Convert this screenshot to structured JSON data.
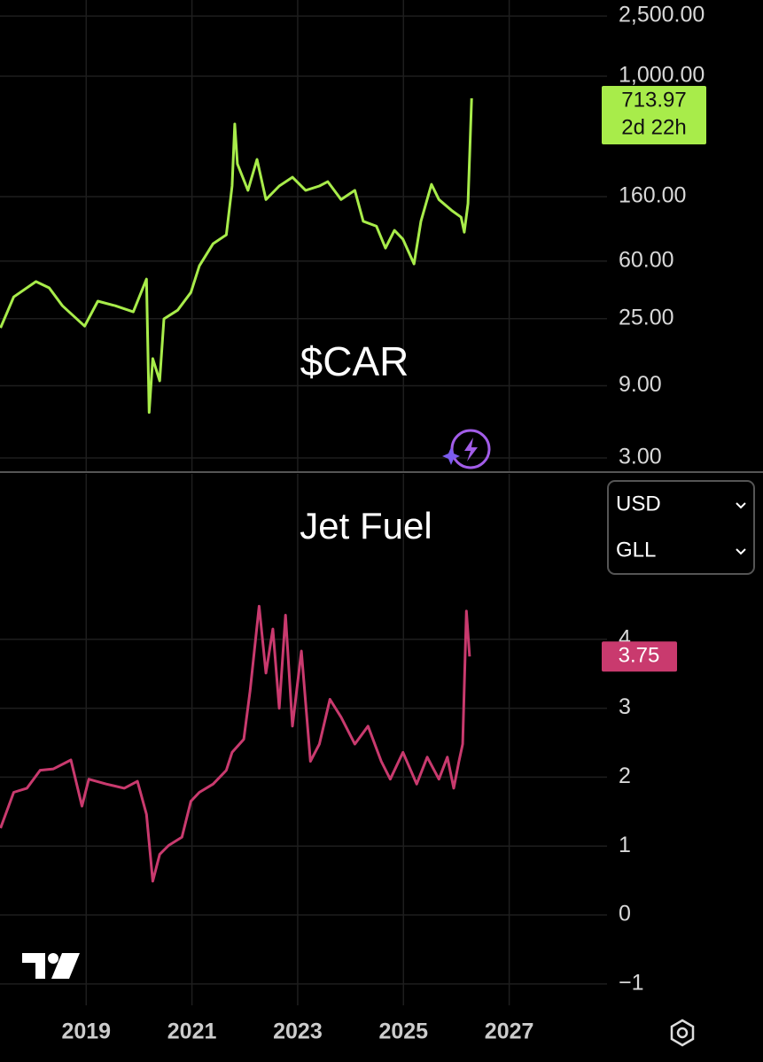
{
  "chart_data": [
    {
      "type": "line",
      "title": "$CAR",
      "log_scale": true,
      "color": "#a8ec4a",
      "xlim": [
        2017.37,
        2028.85
      ],
      "ylim": [
        2.45,
        3190
      ],
      "yticks": [
        {
          "value": 2500,
          "label": "2,500.00"
        },
        {
          "value": 1000,
          "label": "1,000.00"
        },
        {
          "value": 160,
          "label": "160.00"
        },
        {
          "value": 60,
          "label": "60.00"
        },
        {
          "value": 25,
          "label": "25.00"
        },
        {
          "value": 9,
          "label": "9.00"
        },
        {
          "value": 3,
          "label": "3.00"
        }
      ],
      "countdown": "2d 22h",
      "series": [
        {
          "name": "$CAR",
          "color": "#a8ec4a",
          "x": [
            2017.38,
            2017.63,
            2018.05,
            2018.3,
            2018.55,
            2018.97,
            2019.22,
            2019.55,
            2019.89,
            2020.14,
            2020.19,
            2020.26,
            2020.39,
            2020.47,
            2020.73,
            2020.98,
            2021.14,
            2021.4,
            2021.65,
            2021.76,
            2021.81,
            2021.86,
            2022.06,
            2022.23,
            2022.4,
            2022.65,
            2022.9,
            2023.15,
            2023.41,
            2023.57,
            2023.82,
            2024.08,
            2024.24,
            2024.49,
            2024.66,
            2024.83,
            2024.99,
            2025.2,
            2025.33,
            2025.53,
            2025.67,
            2025.92,
            2026.09,
            2026.15,
            2026.22,
            2026.29
          ],
          "values": [
            21.7,
            34.8,
            43.9,
            39.9,
            30.4,
            22.3,
            32.6,
            30.4,
            27.7,
            45.6,
            6.0,
            13.6,
            9.7,
            24.9,
            28.4,
            37.2,
            55.8,
            78.2,
            89.5,
            188,
            483,
            263,
            176,
            282,
            153,
            188,
            215,
            176,
            188,
            201,
            153,
            176,
            110,
            102,
            73.1,
            95.7,
            83.7,
            57.4,
            110,
            193,
            153,
            129,
            117,
            93.1,
            144,
            713.97
          ]
        }
      ]
    },
    {
      "type": "line",
      "title": "Jet Fuel",
      "log_scale": false,
      "color": "#c93a6e",
      "xlim": [
        2017.37,
        2028.85
      ],
      "ylim": [
        -1.31,
        6.4
      ],
      "xticks": [
        2019,
        2021,
        2023,
        2025,
        2027
      ],
      "yticks": [
        4,
        3,
        2,
        1,
        0,
        {
          "value": -1,
          "label": "−1"
        }
      ],
      "series": [
        {
          "name": "Jet Fuel",
          "color": "#c93a6e",
          "x": [
            2017.38,
            2017.63,
            2017.88,
            2018.13,
            2018.38,
            2018.71,
            2018.92,
            2019.05,
            2019.38,
            2019.72,
            2019.97,
            2020.14,
            2020.26,
            2020.39,
            2020.56,
            2020.81,
            2020.98,
            2021.14,
            2021.4,
            2021.65,
            2021.76,
            2021.98,
            2022.1,
            2022.27,
            2022.4,
            2022.53,
            2022.65,
            2022.77,
            2022.9,
            2023.07,
            2023.24,
            2023.41,
            2023.61,
            2023.82,
            2024.08,
            2024.33,
            2024.58,
            2024.75,
            2024.99,
            2025.25,
            2025.45,
            2025.67,
            2025.83,
            2025.95,
            2026.05,
            2026.12,
            2026.19,
            2026.25
          ],
          "values": [
            1.26,
            1.78,
            1.84,
            2.1,
            2.12,
            2.25,
            1.58,
            1.97,
            1.9,
            1.84,
            1.94,
            1.46,
            0.49,
            0.88,
            1.01,
            1.13,
            1.65,
            1.78,
            1.9,
            2.1,
            2.36,
            2.55,
            3.25,
            4.48,
            3.51,
            4.15,
            3.0,
            4.35,
            2.74,
            3.83,
            2.23,
            2.48,
            3.13,
            2.87,
            2.48,
            2.74,
            2.23,
            1.97,
            2.36,
            1.9,
            2.29,
            1.97,
            2.29,
            1.84,
            2.23,
            2.48,
            4.41,
            3.75
          ]
        }
      ]
    }
  ],
  "ui": {
    "currency": "USD",
    "unit": "GLL"
  }
}
